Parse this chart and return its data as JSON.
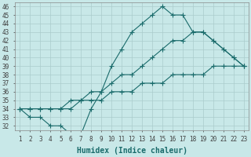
{
  "xlabel": "Humidex (Indice chaleur)",
  "bg_color": "#c8e8e8",
  "grid_color": "#aacccc",
  "line_color": "#1a6b6b",
  "x": [
    1,
    2,
    3,
    4,
    5,
    6,
    7,
    8,
    9,
    10,
    11,
    12,
    13,
    14,
    15,
    16,
    17,
    18,
    19,
    20,
    21,
    22,
    23
  ],
  "line1": [
    34,
    33,
    33,
    32,
    32,
    31,
    31,
    34,
    36,
    39,
    41,
    43,
    44,
    45,
    46,
    45,
    45,
    43,
    43,
    42,
    41,
    40,
    39
  ],
  "line2": [
    34,
    34,
    34,
    34,
    34,
    34,
    35,
    36,
    36,
    37,
    38,
    38,
    39,
    40,
    41,
    42,
    42,
    43,
    43,
    42,
    41,
    40,
    39
  ],
  "line3": [
    34,
    34,
    34,
    34,
    34,
    35,
    35,
    35,
    35,
    36,
    36,
    36,
    37,
    37,
    37,
    38,
    38,
    38,
    38,
    39,
    39,
    39,
    39
  ],
  "xlim": [
    0.5,
    23.5
  ],
  "ylim": [
    31.5,
    46.5
  ],
  "xticks": [
    1,
    2,
    3,
    4,
    5,
    6,
    7,
    8,
    9,
    10,
    11,
    12,
    13,
    14,
    15,
    16,
    17,
    18,
    19,
    20,
    21,
    22,
    23
  ],
  "yticks": [
    32,
    33,
    34,
    35,
    36,
    37,
    38,
    39,
    40,
    41,
    42,
    43,
    44,
    45,
    46
  ],
  "marker": "+",
  "markersize": 4,
  "linewidth": 0.8,
  "xlabel_fontsize": 7,
  "tick_fontsize": 5.5
}
